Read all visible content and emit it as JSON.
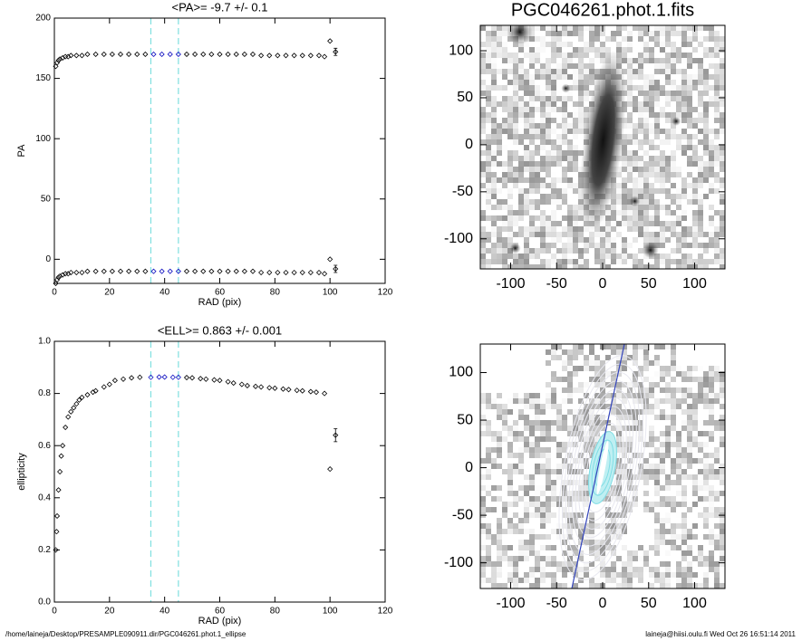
{
  "chart_data": [
    {
      "type": "scatter",
      "title": "<PA>=  -9.7 +/-   0.1",
      "xlabel": "RAD (pix)",
      "ylabel": "PA",
      "xlim": [
        0,
        120
      ],
      "xticks": [
        0,
        20,
        40,
        60,
        80,
        100,
        120
      ],
      "ylim": [
        -20,
        200
      ],
      "yticks": [
        0,
        50,
        100,
        150,
        200
      ],
      "markers": [
        35,
        45
      ],
      "marker_color": "#7fe0e0",
      "color": "#000000",
      "highlight_color": "#1010c0",
      "series": [
        {
          "x": [
            0.5,
            1,
            1.5,
            2,
            3,
            4,
            5,
            6,
            8,
            10,
            12,
            15,
            18,
            21,
            24,
            27,
            30,
            33,
            36,
            39,
            42,
            45,
            48,
            51,
            54,
            57,
            60,
            63,
            66,
            69,
            72,
            75,
            78,
            81,
            84,
            87,
            90,
            93,
            96,
            98
          ],
          "values": [
            160,
            163,
            165,
            166,
            167,
            168,
            168,
            169,
            169,
            169,
            170,
            170,
            170,
            170,
            170,
            170,
            170,
            170,
            170,
            170,
            170,
            170,
            170,
            170,
            170,
            170,
            170,
            170,
            170,
            170,
            170,
            169,
            169,
            169,
            169,
            169,
            169,
            169,
            169,
            168
          ]
        },
        {
          "x": [
            0.5,
            1,
            1.5,
            2,
            3,
            4,
            5,
            6,
            8,
            10,
            12,
            15,
            18,
            21,
            24,
            27,
            30,
            33,
            36,
            39,
            42,
            45,
            48,
            51,
            54,
            57,
            60,
            63,
            66,
            69,
            72,
            75,
            78,
            81,
            84,
            87,
            90,
            93,
            96,
            98
          ],
          "values": [
            -20,
            -17,
            -15,
            -14,
            -13,
            -12,
            -12,
            -11,
            -11,
            -11,
            -10,
            -10,
            -10,
            -10,
            -10,
            -10,
            -10,
            -10,
            -10,
            -10,
            -10,
            -10,
            -10,
            -10,
            -10,
            -10,
            -10,
            -10,
            -10,
            -10,
            -10,
            -11,
            -11,
            -11,
            -11,
            -11,
            -11,
            -11,
            -11,
            -12
          ]
        },
        {
          "x": [
            100,
            102,
            100,
            102
          ],
          "values": [
            181,
            172,
            0,
            -8
          ],
          "errors": [
            0,
            3,
            0,
            3
          ]
        }
      ]
    },
    {
      "type": "scatter",
      "title": "<ELL>= 0.863 +/-  0.001",
      "xlabel": "RAD (pix)",
      "ylabel": "ellipticity",
      "xlim": [
        0,
        120
      ],
      "xticks": [
        0,
        20,
        40,
        60,
        80,
        100,
        120
      ],
      "ylim": [
        0,
        1
      ],
      "yticks": [
        {
          "value": 0,
          "label": "0.0"
        },
        {
          "value": 0.2,
          "label": "0.2"
        },
        {
          "value": 0.4,
          "label": "0.4"
        },
        {
          "value": 0.6,
          "label": "0.6"
        },
        {
          "value": 0.8,
          "label": "0.8"
        },
        {
          "value": 1,
          "label": "1.0"
        }
      ],
      "markers": [
        35,
        45
      ],
      "marker_color": "#7fe0e0",
      "color": "#000000",
      "highlight_color": "#1010c0",
      "series": [
        {
          "x": [
            0.5,
            0.8,
            1,
            1.5,
            2,
            2.5,
            3,
            4,
            5,
            6,
            7,
            8,
            9,
            10,
            12,
            14,
            15,
            18,
            20,
            22,
            25,
            28,
            31,
            35,
            38,
            40,
            43,
            45,
            48,
            50,
            53,
            55,
            58,
            60,
            63,
            65,
            68,
            70,
            73,
            75,
            78,
            80,
            83,
            85,
            88,
            90,
            93,
            95,
            98
          ],
          "values": [
            0.2,
            0.27,
            0.33,
            0.43,
            0.5,
            0.56,
            0.6,
            0.67,
            0.71,
            0.73,
            0.745,
            0.76,
            0.775,
            0.785,
            0.795,
            0.805,
            0.81,
            0.825,
            0.835,
            0.85,
            0.855,
            0.86,
            0.862,
            0.862,
            0.863,
            0.863,
            0.862,
            0.862,
            0.861,
            0.86,
            0.857,
            0.855,
            0.852,
            0.85,
            0.845,
            0.84,
            0.835,
            0.83,
            0.827,
            0.825,
            0.822,
            0.82,
            0.817,
            0.815,
            0.812,
            0.81,
            0.807,
            0.805,
            0.8
          ]
        },
        {
          "x": [
            100,
            102
          ],
          "values": [
            0.51,
            0.64
          ],
          "errors": [
            0,
            0.025
          ]
        }
      ]
    },
    {
      "type": "image",
      "title": "PGC046261.phot.1.fits",
      "xlim": [
        -133,
        133
      ],
      "xticks": [
        -100,
        -50,
        0,
        50,
        100
      ],
      "ylim": [
        -132,
        127
      ],
      "yticks": [
        -100,
        -50,
        0,
        50,
        100
      ]
    },
    {
      "type": "image",
      "xlim": [
        -133,
        133
      ],
      "xticks": [
        -100,
        -50,
        0,
        50,
        100
      ],
      "ylim": [
        -127,
        130
      ],
      "yticks": [
        -100,
        -50,
        0,
        50,
        100
      ]
    }
  ],
  "footer": {
    "left": "/home/laineja/Desktop/PRESAMPLE090911.dir/PGC046261.phot.1_ellipse",
    "right": "laineja@hiisi.oulu.fi  Wed Oct 26 16:51:14 2011"
  }
}
